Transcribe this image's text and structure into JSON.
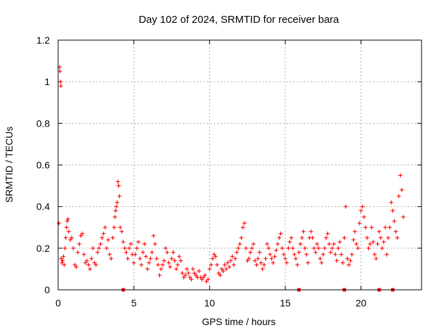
{
  "chart_data": {
    "type": "scatter",
    "title": "Day 102 of 2024, SRMTID for receiver bara",
    "xlabel": "GPS time / hours",
    "ylabel": "SRMTID / TECUs",
    "xlim": [
      0,
      24
    ],
    "ylim": [
      0,
      1.2
    ],
    "xticks": [
      0,
      5,
      10,
      15,
      20
    ],
    "xtick_labels": [
      "0",
      "5",
      "10",
      "15",
      "20"
    ],
    "yticks": [
      0,
      0.2,
      0.4,
      0.6,
      0.8,
      1.0,
      1.2
    ],
    "ytick_labels": [
      "0",
      "0.2",
      "0.4",
      "0.6",
      "0.8",
      "1",
      "1.2"
    ],
    "grid": true,
    "marker": "+",
    "color": "#ff0000",
    "series": [
      {
        "name": "SRMTID",
        "x": [
          0.05,
          0.1,
          0.12,
          0.15,
          0.18,
          0.2,
          0.25,
          0.3,
          0.35,
          0.4,
          0.45,
          0.5,
          0.55,
          0.6,
          0.65,
          0.7,
          0.8,
          0.9,
          1.0,
          1.1,
          1.2,
          1.3,
          1.4,
          1.5,
          1.6,
          1.7,
          1.8,
          1.9,
          2.0,
          2.1,
          2.2,
          2.3,
          2.4,
          2.5,
          2.6,
          2.7,
          2.8,
          2.9,
          3.0,
          3.1,
          3.2,
          3.3,
          3.4,
          3.5,
          3.6,
          3.7,
          3.75,
          3.8,
          3.85,
          3.9,
          3.95,
          4.0,
          4.05,
          4.1,
          4.2,
          4.3,
          4.4,
          4.5,
          4.6,
          4.7,
          4.8,
          4.9,
          5.0,
          5.1,
          5.2,
          5.3,
          5.4,
          5.5,
          5.6,
          5.7,
          5.8,
          5.9,
          6.0,
          6.1,
          6.2,
          6.3,
          6.4,
          6.5,
          6.6,
          6.7,
          6.8,
          6.9,
          7.0,
          7.1,
          7.2,
          7.3,
          7.4,
          7.5,
          7.6,
          7.7,
          7.8,
          7.9,
          8.0,
          8.1,
          8.2,
          8.3,
          8.4,
          8.5,
          8.6,
          8.7,
          8.8,
          8.9,
          9.0,
          9.1,
          9.2,
          9.3,
          9.4,
          9.5,
          9.6,
          9.7,
          9.8,
          9.9,
          10.0,
          10.1,
          10.2,
          10.3,
          10.4,
          10.5,
          10.6,
          10.7,
          10.8,
          10.9,
          11.0,
          11.1,
          11.2,
          11.3,
          11.4,
          11.5,
          11.6,
          11.7,
          11.8,
          11.9,
          12.0,
          12.1,
          12.2,
          12.3,
          12.4,
          12.5,
          12.6,
          12.7,
          12.8,
          12.9,
          13.0,
          13.1,
          13.2,
          13.3,
          13.4,
          13.5,
          13.6,
          13.7,
          13.8,
          13.9,
          14.0,
          14.1,
          14.2,
          14.3,
          14.4,
          14.5,
          14.6,
          14.7,
          14.8,
          14.9,
          15.0,
          15.1,
          15.2,
          15.3,
          15.4,
          15.5,
          15.6,
          15.7,
          15.8,
          15.9,
          16.0,
          16.1,
          16.2,
          16.3,
          16.4,
          16.5,
          16.6,
          16.7,
          16.8,
          16.9,
          17.0,
          17.1,
          17.2,
          17.3,
          17.4,
          17.5,
          17.6,
          17.7,
          17.8,
          17.9,
          18.0,
          18.1,
          18.2,
          18.3,
          18.4,
          18.5,
          18.6,
          18.7,
          18.8,
          18.9,
          19.0,
          19.1,
          19.2,
          19.3,
          19.4,
          19.5,
          19.6,
          19.7,
          19.8,
          19.9,
          20.0,
          20.1,
          20.2,
          20.3,
          20.4,
          20.5,
          20.6,
          20.7,
          20.8,
          20.9,
          21.0,
          21.1,
          21.2,
          21.3,
          21.4,
          21.5,
          21.6,
          21.7,
          21.8,
          21.9,
          22.0,
          22.1,
          22.2,
          22.3,
          22.4,
          22.5,
          22.6,
          22.7,
          22.8
        ],
        "y": [
          0.32,
          1.07,
          1.05,
          1.0,
          0.98,
          0.15,
          0.13,
          0.14,
          0.16,
          0.12,
          0.2,
          0.25,
          0.3,
          0.33,
          0.34,
          0.28,
          0.24,
          0.25,
          0.2,
          0.12,
          0.11,
          0.18,
          0.22,
          0.26,
          0.27,
          0.17,
          0.13,
          0.14,
          0.12,
          0.1,
          0.15,
          0.2,
          0.13,
          0.12,
          0.18,
          0.2,
          0.22,
          0.25,
          0.27,
          0.3,
          0.2,
          0.24,
          0.17,
          0.15,
          0.25,
          0.3,
          0.35,
          0.38,
          0.4,
          0.42,
          0.52,
          0.5,
          0.45,
          0.3,
          0.28,
          0.23,
          0.2,
          0.18,
          0.15,
          0.2,
          0.22,
          0.17,
          0.13,
          0.17,
          0.2,
          0.23,
          0.15,
          0.12,
          0.18,
          0.22,
          0.16,
          0.1,
          0.13,
          0.15,
          0.18,
          0.26,
          0.22,
          0.15,
          0.12,
          0.07,
          0.1,
          0.12,
          0.14,
          0.2,
          0.18,
          0.13,
          0.11,
          0.15,
          0.18,
          0.14,
          0.1,
          0.12,
          0.16,
          0.14,
          0.08,
          0.06,
          0.07,
          0.1,
          0.08,
          0.06,
          0.05,
          0.1,
          0.08,
          0.07,
          0.06,
          0.09,
          0.06,
          0.05,
          0.06,
          0.07,
          0.04,
          0.05,
          0.1,
          0.12,
          0.15,
          0.17,
          0.16,
          0.12,
          0.08,
          0.07,
          0.1,
          0.09,
          0.12,
          0.1,
          0.13,
          0.11,
          0.14,
          0.16,
          0.12,
          0.15,
          0.18,
          0.2,
          0.22,
          0.25,
          0.3,
          0.32,
          0.2,
          0.14,
          0.15,
          0.18,
          0.2,
          0.22,
          0.14,
          0.12,
          0.15,
          0.18,
          0.13,
          0.1,
          0.12,
          0.15,
          0.22,
          0.2,
          0.17,
          0.15,
          0.13,
          0.16,
          0.19,
          0.22,
          0.25,
          0.27,
          0.2,
          0.17,
          0.15,
          0.13,
          0.2,
          0.23,
          0.25,
          0.2,
          0.17,
          0.15,
          0.12,
          0.18,
          0.22,
          0.25,
          0.28,
          0.2,
          0.17,
          0.13,
          0.25,
          0.28,
          0.25,
          0.2,
          0.18,
          0.22,
          0.2,
          0.15,
          0.13,
          0.17,
          0.2,
          0.25,
          0.27,
          0.22,
          0.18,
          0.2,
          0.22,
          0.17,
          0.14,
          0.2,
          0.23,
          0.17,
          0.13,
          0.25,
          0.4,
          0.15,
          0.12,
          0.14,
          0.17,
          0.24,
          0.28,
          0.22,
          0.2,
          0.32,
          0.38,
          0.4,
          0.35,
          0.3,
          0.25,
          0.2,
          0.22,
          0.3,
          0.23,
          0.17,
          0.15,
          0.22,
          0.28,
          0.25,
          0.2,
          0.23,
          0.3,
          0.17,
          0.25,
          0.3,
          0.42,
          0.38,
          0.33,
          0.28,
          0.25,
          0.45,
          0.55,
          0.48,
          0.35
        ]
      }
    ],
    "zero_markers_x": [
      4.3,
      15.9,
      18.9,
      21.2,
      22.1
    ]
  }
}
